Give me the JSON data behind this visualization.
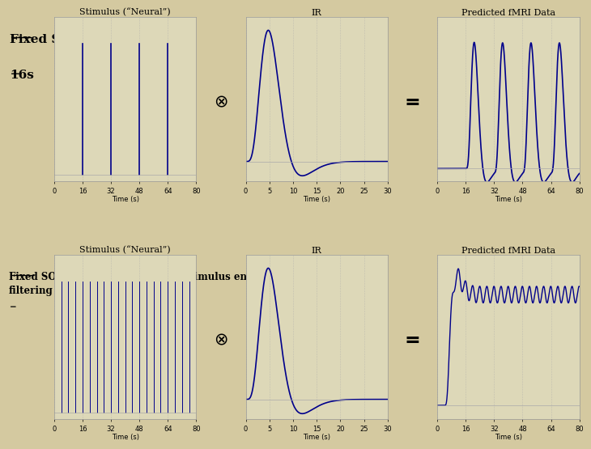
{
  "bg_color": "#d4c9a0",
  "panel_bg": "#ddd8b8",
  "line_color": "#00008B",
  "title1_line1": "Fixed SOA",
  "title1_line2": "16s",
  "title2_line1": "Fixed SOA 4s: low variance, lose stimulus energy after",
  "title2_line2": "filtering",
  "label_stimulus": "Stimulus (“Neural”)",
  "label_ir": "IR",
  "label_predicted1": "Predicted fMRI Data",
  "label_predicted2": "Predicted fMRI Data",
  "xlabel": "Time (s)",
  "soa16_stim_times": [
    16,
    32,
    48,
    64
  ],
  "soa4_step": 4,
  "stim_duration": 80,
  "hrf_duration": 30,
  "font_size_title": 11,
  "font_size_label": 8,
  "font_size_axis": 6
}
